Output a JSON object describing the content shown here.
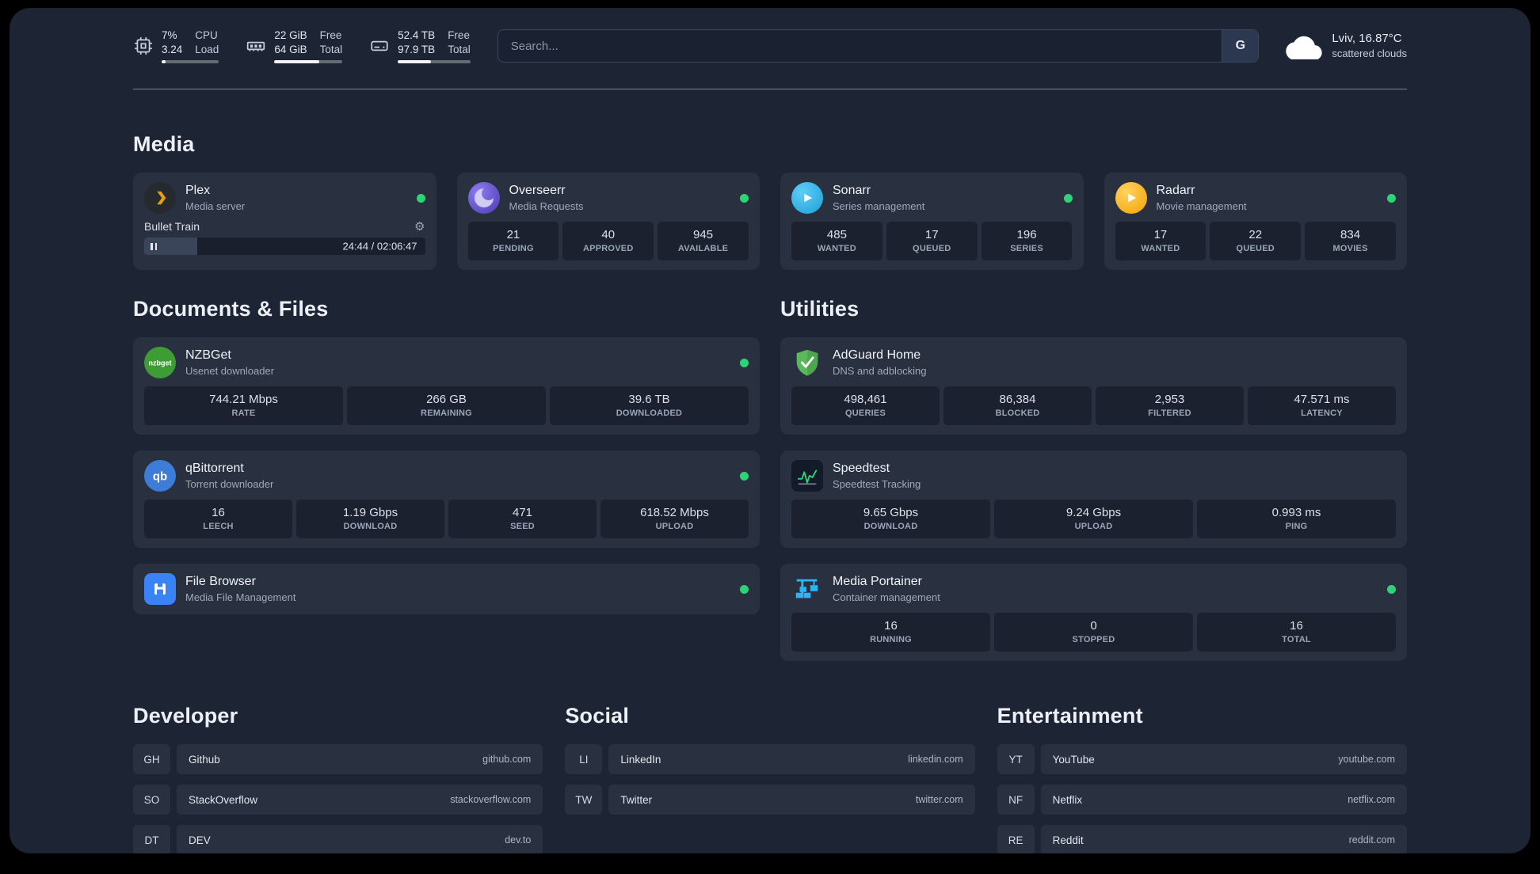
{
  "icons": {
    "gear": "⚙"
  },
  "topbar": {
    "resources": [
      {
        "icon": "cpu-icon",
        "value_top": "7%",
        "value_bottom": "3.24",
        "label_top": "CPU",
        "label_bottom": "Load",
        "progress_pct": 7
      },
      {
        "icon": "memory-icon",
        "value_top": "22 GiB",
        "value_bottom": "64 GiB",
        "label_top": "Free",
        "label_bottom": "Total",
        "progress_pct": 66
      },
      {
        "icon": "disk-icon",
        "value_top": "52.4 TB",
        "value_bottom": "97.9 TB",
        "label_top": "Free",
        "label_bottom": "Total",
        "progress_pct": 46
      }
    ],
    "search": {
      "placeholder": "Search...",
      "provider_label": "G"
    },
    "weather": {
      "icon": "cloud-icon",
      "location": "Lviv, 16.87°C",
      "condition": "scattered clouds"
    }
  },
  "sections": {
    "media": {
      "title": "Media",
      "plex": {
        "icon": "plex-icon",
        "name": "Plex",
        "subtitle": "Media server",
        "player": {
          "track": "Bullet Train",
          "time": "24:44 / 02:06:47",
          "progress_pct": 19
        }
      },
      "overseerr": {
        "icon": "overseerr-icon",
        "name": "Overseerr",
        "subtitle": "Media Requests",
        "stats": [
          {
            "value": "21",
            "label": "PENDING"
          },
          {
            "value": "40",
            "label": "APPROVED"
          },
          {
            "value": "945",
            "label": "AVAILABLE"
          }
        ]
      },
      "sonarr": {
        "icon": "sonarr-icon",
        "name": "Sonarr",
        "subtitle": "Series management",
        "stats": [
          {
            "value": "485",
            "label": "WANTED"
          },
          {
            "value": "17",
            "label": "QUEUED"
          },
          {
            "value": "196",
            "label": "SERIES"
          }
        ]
      },
      "radarr": {
        "icon": "radarr-icon",
        "name": "Radarr",
        "subtitle": "Movie management",
        "stats": [
          {
            "value": "17",
            "label": "WANTED"
          },
          {
            "value": "22",
            "label": "QUEUED"
          },
          {
            "value": "834",
            "label": "MOVIES"
          }
        ]
      }
    },
    "documents": {
      "title": "Documents & Files",
      "nzbget": {
        "icon": "nzbget-icon",
        "name": "NZBGet",
        "subtitle": "Usenet downloader",
        "stats": [
          {
            "value": "744.21 Mbps",
            "label": "RATE"
          },
          {
            "value": "266 GB",
            "label": "REMAINING"
          },
          {
            "value": "39.6 TB",
            "label": "DOWNLOADED"
          }
        ]
      },
      "qbittorrent": {
        "icon": "qbittorrent-icon",
        "name": "qBittorrent",
        "subtitle": "Torrent downloader",
        "stats": [
          {
            "value": "16",
            "label": "LEECH"
          },
          {
            "value": "1.19 Gbps",
            "label": "DOWNLOAD"
          },
          {
            "value": "471",
            "label": "SEED"
          },
          {
            "value": "618.52 Mbps",
            "label": "UPLOAD"
          }
        ]
      },
      "filebrowser": {
        "icon": "filebrowser-icon",
        "name": "File Browser",
        "subtitle": "Media File Management"
      }
    },
    "utilities": {
      "title": "Utilities",
      "adguard": {
        "icon": "adguard-icon",
        "name": "AdGuard Home",
        "subtitle": "DNS and adblocking",
        "stats": [
          {
            "value": "498,461",
            "label": "QUERIES"
          },
          {
            "value": "86,384",
            "label": "BLOCKED"
          },
          {
            "value": "2,953",
            "label": "FILTERED"
          },
          {
            "value": "47.571 ms",
            "label": "LATENCY"
          }
        ]
      },
      "speedtest": {
        "icon": "speedtest-icon",
        "name": "Speedtest",
        "subtitle": "Speedtest Tracking",
        "stats": [
          {
            "value": "9.65 Gbps",
            "label": "DOWNLOAD"
          },
          {
            "value": "9.24 Gbps",
            "label": "UPLOAD"
          },
          {
            "value": "0.993 ms",
            "label": "PING"
          }
        ]
      },
      "portainer": {
        "icon": "portainer-icon",
        "name": "Media Portainer",
        "subtitle": "Container management",
        "stats": [
          {
            "value": "16",
            "label": "RUNNING"
          },
          {
            "value": "0",
            "label": "STOPPED"
          },
          {
            "value": "16",
            "label": "TOTAL"
          }
        ]
      }
    },
    "bookmarks": {
      "developer": {
        "title": "Developer",
        "items": [
          {
            "abbr": "GH",
            "name": "Github",
            "url": "github.com"
          },
          {
            "abbr": "SO",
            "name": "StackOverflow",
            "url": "stackoverflow.com"
          },
          {
            "abbr": "DT",
            "name": "DEV",
            "url": "dev.to"
          }
        ]
      },
      "social": {
        "title": "Social",
        "items": [
          {
            "abbr": "LI",
            "name": "LinkedIn",
            "url": "linkedin.com"
          },
          {
            "abbr": "TW",
            "name": "Twitter",
            "url": "twitter.com"
          }
        ]
      },
      "entertainment": {
        "title": "Entertainment",
        "items": [
          {
            "abbr": "YT",
            "name": "YouTube",
            "url": "youtube.com"
          },
          {
            "abbr": "NF",
            "name": "Netflix",
            "url": "netflix.com"
          },
          {
            "abbr": "RE",
            "name": "Reddit",
            "url": "reddit.com"
          }
        ]
      }
    }
  },
  "colors": {
    "background": "#1d2534",
    "status_green": "#2fd377",
    "accent_plex": "#e5a00d"
  }
}
